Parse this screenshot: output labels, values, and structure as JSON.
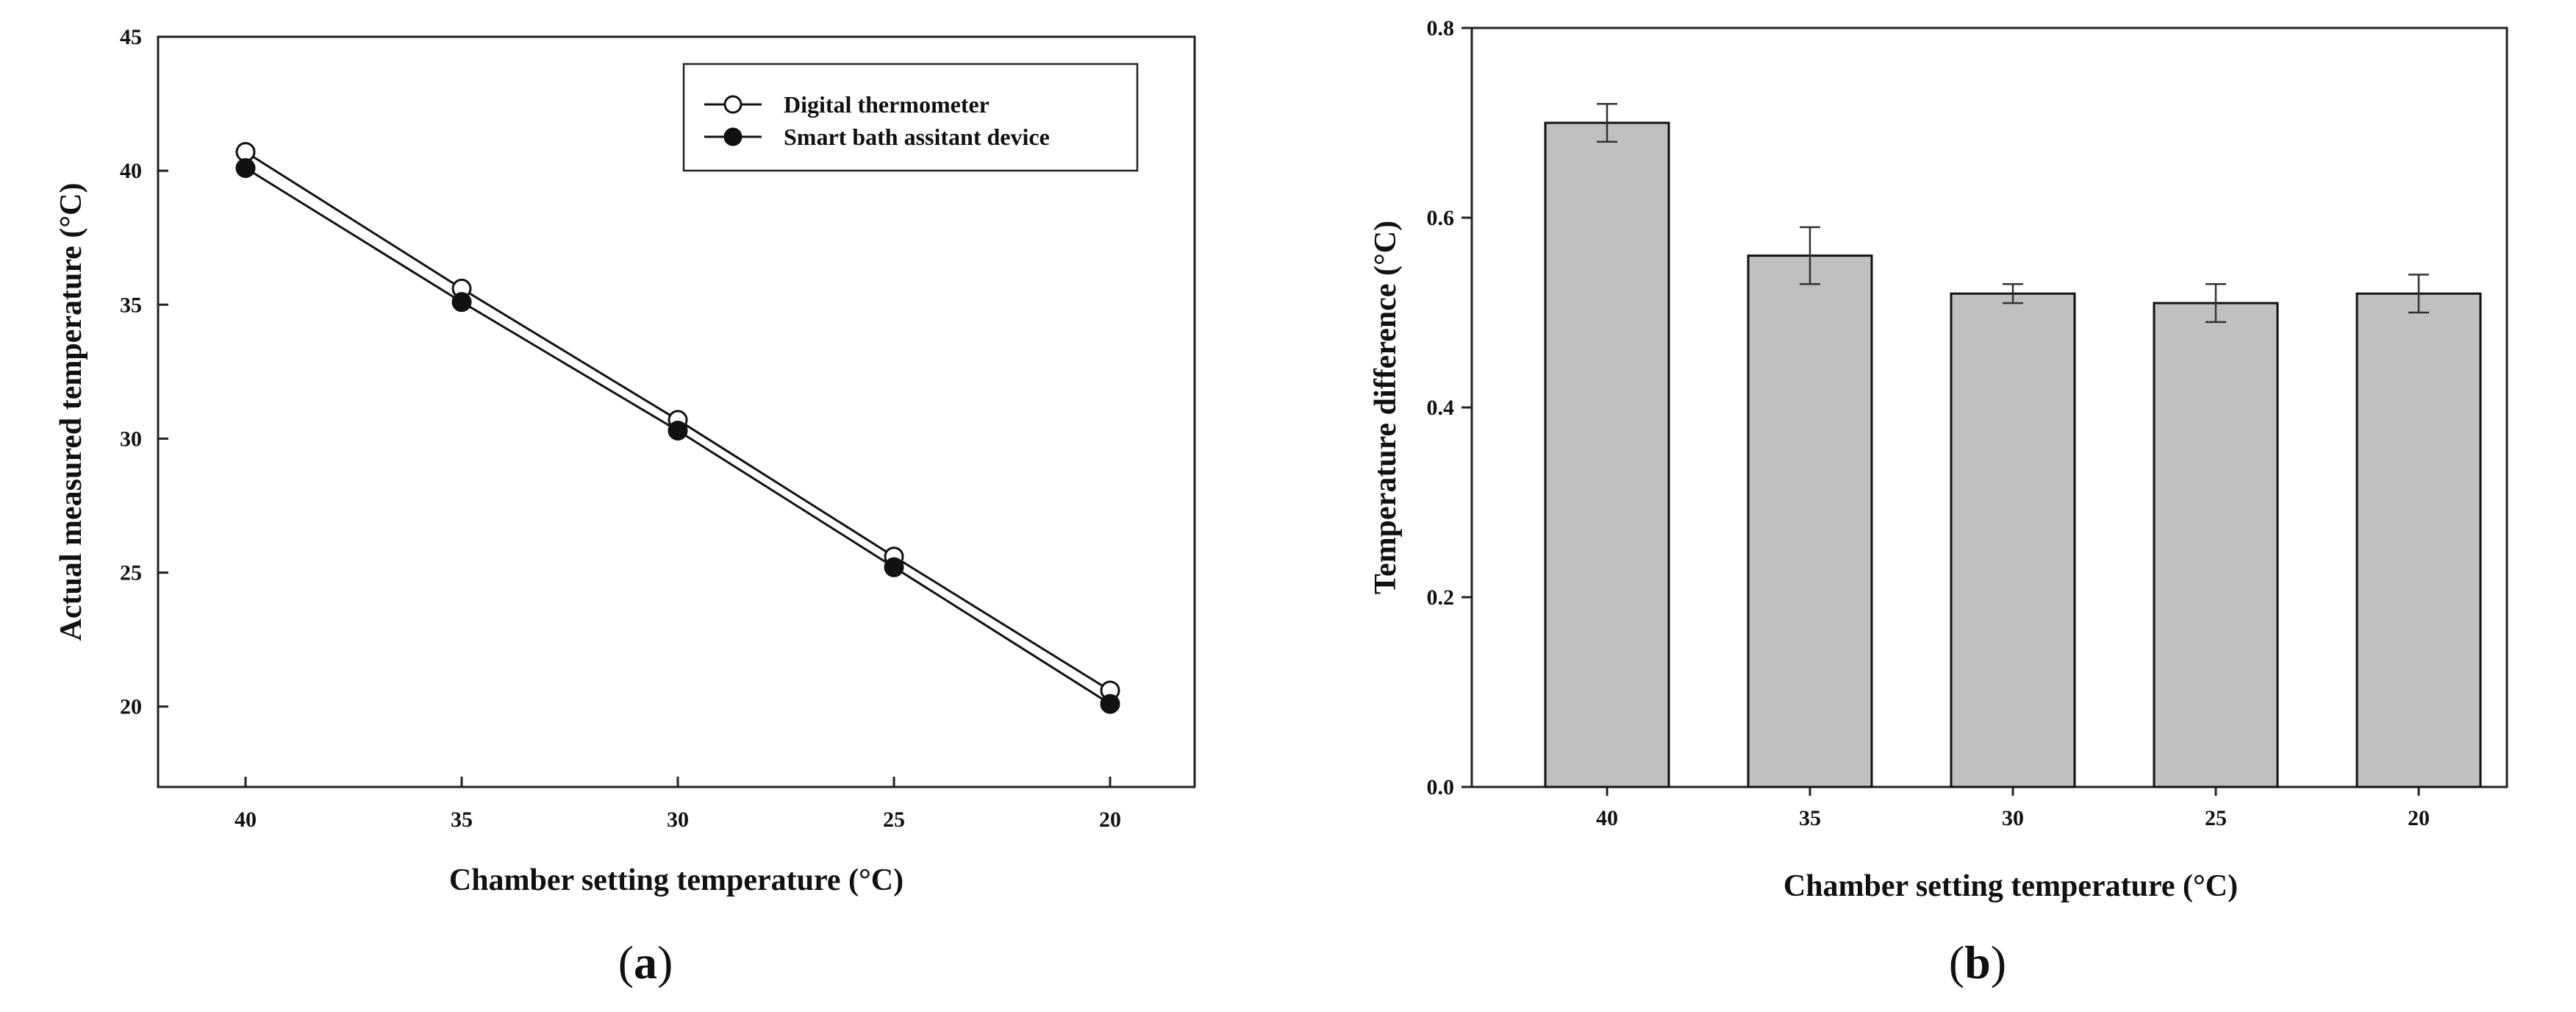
{
  "chart_data": [
    {
      "type": "line",
      "categories": [
        "40",
        "35",
        "30",
        "25",
        "20"
      ],
      "ylabel": "Actual measured temperature (°C)",
      "xlabel": "Chamber setting temperature (°C)",
      "ylim": [
        17,
        45
      ],
      "yticks": [
        "20",
        "25",
        "30",
        "35",
        "40",
        "45"
      ],
      "legend_position": "top-right",
      "grid": false,
      "series": [
        {
          "name": "Digital thermometer",
          "marker": "open-circle",
          "values": [
            40.7,
            35.6,
            30.7,
            25.6,
            20.6
          ]
        },
        {
          "name": "Smart bath assitant device",
          "marker": "filled-circle",
          "values": [
            40.1,
            35.1,
            30.3,
            25.2,
            20.1
          ]
        }
      ],
      "panel_label": {
        "open": "(",
        "letter": "a",
        "close": ")"
      }
    },
    {
      "type": "bar",
      "categories": [
        "40",
        "35",
        "30",
        "25",
        "20"
      ],
      "values": [
        0.7,
        0.56,
        0.52,
        0.51,
        0.52
      ],
      "errors": [
        0.02,
        0.03,
        0.01,
        0.02,
        0.02
      ],
      "ylabel": "Temperature difference (°C)",
      "xlabel": "Chamber setting temperature (°C)",
      "ylim": [
        0,
        0.8
      ],
      "yticks": [
        "0.0",
        "0.2",
        "0.4",
        "0.6",
        "0.8"
      ],
      "bar_color": "#c0c0c0",
      "grid": false,
      "panel_label": {
        "open": "(",
        "letter": "b",
        "close": ")"
      }
    }
  ]
}
